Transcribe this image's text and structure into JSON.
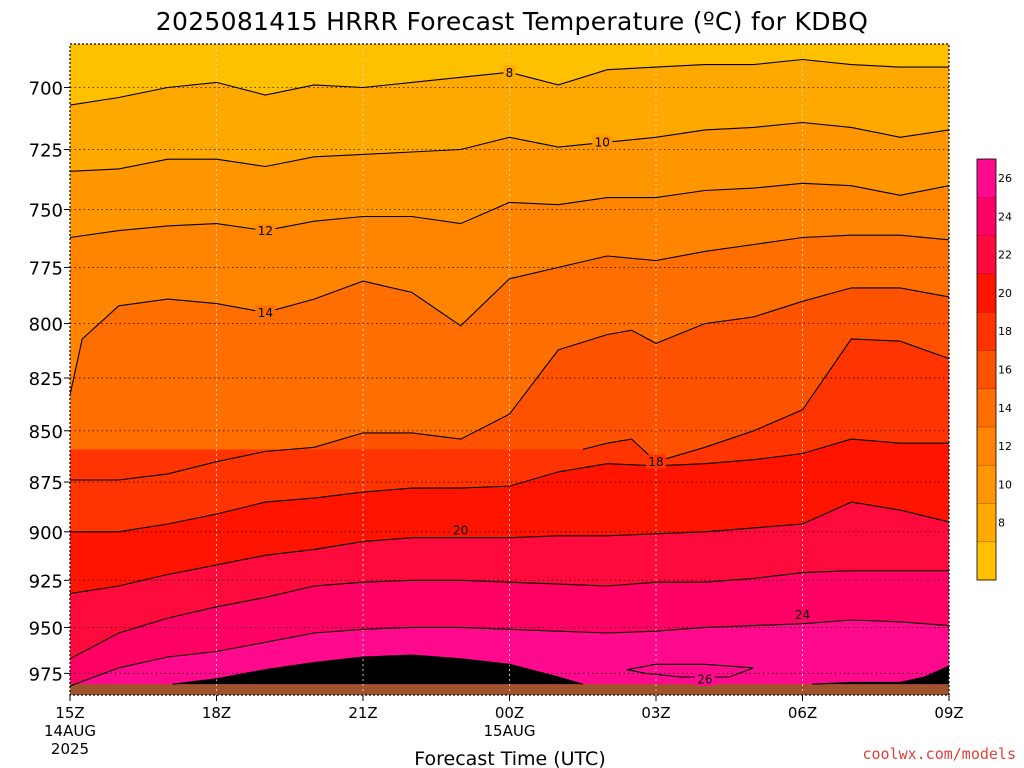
{
  "chart_data": {
    "type": "heatmap",
    "title": "2025081415 HRRR Forecast Temperature (ºC) for KDBQ",
    "xlabel": "Forecast Time (UTC)",
    "x_ticks": [
      {
        "hour": 0,
        "lines": [
          "15Z",
          "14AUG",
          "2025"
        ]
      },
      {
        "hour": 3,
        "lines": [
          "18Z"
        ]
      },
      {
        "hour": 6,
        "lines": [
          "21Z"
        ]
      },
      {
        "hour": 9,
        "lines": [
          "00Z",
          "15AUG"
        ]
      },
      {
        "hour": 12,
        "lines": [
          "03Z"
        ]
      },
      {
        "hour": 15,
        "lines": [
          "06Z"
        ]
      },
      {
        "hour": 18,
        "lines": [
          "09Z"
        ]
      }
    ],
    "x_range_hours": [
      0,
      18
    ],
    "y_range_hpa": [
      683,
      987
    ],
    "y_scale": "log",
    "y_ticks": [
      700,
      725,
      750,
      775,
      800,
      825,
      850,
      875,
      900,
      925,
      950,
      975
    ],
    "ground_pressure_hpa": 981,
    "grid": true,
    "colorbar": {
      "levels": [
        6,
        8,
        10,
        12,
        14,
        16,
        18,
        20,
        22,
        24,
        26,
        28
      ],
      "labels": [
        8,
        10,
        12,
        14,
        16,
        18,
        20,
        22,
        24,
        26
      ],
      "colors": [
        "#ffc000",
        "#ffa800",
        "#ff9600",
        "#ff8400",
        "#ff6e00",
        "#ff5200",
        "#ff3400",
        "#ff1400",
        "#ff0a3c",
        "#ff0064",
        "#ff0a8c"
      ]
    },
    "ground_color": "#a0522d",
    "contours": [
      {
        "value": 8,
        "label": "8",
        "points": [
          [
            0,
            707
          ],
          [
            1,
            704
          ],
          [
            2,
            700
          ],
          [
            3,
            698
          ],
          [
            4,
            703
          ],
          [
            5,
            699
          ],
          [
            6,
            700
          ],
          [
            7,
            698
          ],
          [
            8,
            696
          ],
          [
            9,
            694
          ],
          [
            10,
            699
          ],
          [
            11,
            693
          ],
          [
            12,
            692
          ],
          [
            13,
            691
          ],
          [
            14,
            691
          ],
          [
            15,
            689
          ],
          [
            16,
            691
          ],
          [
            17,
            692
          ],
          [
            18,
            692
          ]
        ]
      },
      {
        "value": 10,
        "label": "10",
        "points": [
          [
            0,
            734
          ],
          [
            1,
            733
          ],
          [
            2,
            729
          ],
          [
            3,
            729
          ],
          [
            4,
            732
          ],
          [
            5,
            728
          ],
          [
            6,
            727
          ],
          [
            7,
            726
          ],
          [
            8,
            725
          ],
          [
            9,
            720
          ],
          [
            10,
            724
          ],
          [
            11,
            722
          ],
          [
            12,
            720
          ],
          [
            13,
            717
          ],
          [
            14,
            716
          ],
          [
            15,
            714
          ],
          [
            16,
            716
          ],
          [
            17,
            720
          ],
          [
            18,
            717
          ]
        ]
      },
      {
        "value": 12,
        "label": "12",
        "points": [
          [
            0,
            762
          ],
          [
            1,
            759
          ],
          [
            2,
            757
          ],
          [
            3,
            756
          ],
          [
            4,
            759
          ],
          [
            5,
            755
          ],
          [
            6,
            753
          ],
          [
            7,
            753
          ],
          [
            8,
            756
          ],
          [
            9,
            747
          ],
          [
            10,
            748
          ],
          [
            11,
            745
          ],
          [
            12,
            745
          ],
          [
            13,
            742
          ],
          [
            14,
            741
          ],
          [
            15,
            739
          ],
          [
            16,
            740
          ],
          [
            17,
            744
          ],
          [
            18,
            740
          ]
        ]
      },
      {
        "value": 14,
        "label": "14",
        "points": [
          [
            0,
            833
          ],
          [
            0.25,
            807
          ],
          [
            1,
            792
          ],
          [
            2,
            789
          ],
          [
            3,
            791
          ],
          [
            4,
            795
          ],
          [
            5,
            789
          ],
          [
            6,
            781
          ],
          [
            7,
            786
          ],
          [
            8,
            801
          ],
          [
            9,
            780
          ],
          [
            10,
            775
          ],
          [
            11,
            770
          ],
          [
            12,
            772
          ],
          [
            13,
            768
          ],
          [
            14,
            765
          ],
          [
            15,
            762
          ],
          [
            16,
            761
          ],
          [
            17,
            761
          ],
          [
            18,
            763
          ]
        ]
      },
      {
        "value": 16,
        "label": "",
        "points": [
          [
            0,
            874
          ],
          [
            1,
            874
          ],
          [
            2,
            871
          ],
          [
            3,
            865
          ],
          [
            4,
            860
          ],
          [
            5,
            858
          ],
          [
            6,
            851
          ],
          [
            7,
            851
          ],
          [
            8,
            854
          ],
          [
            9,
            842
          ],
          [
            10,
            812
          ],
          [
            11,
            805
          ],
          [
            11.5,
            803
          ],
          [
            12,
            809
          ],
          [
            13,
            800
          ],
          [
            14,
            797
          ],
          [
            15,
            790
          ],
          [
            16,
            784
          ],
          [
            17,
            784
          ],
          [
            18,
            788
          ]
        ]
      },
      {
        "value": 18,
        "label": "18",
        "points": [
          [
            10.5,
            859
          ],
          [
            11,
            856
          ],
          [
            11.5,
            854
          ],
          [
            12,
            865
          ],
          [
            13,
            858
          ],
          [
            14,
            850
          ],
          [
            15,
            840
          ],
          [
            16,
            807
          ],
          [
            17,
            808
          ],
          [
            18,
            816
          ]
        ]
      },
      {
        "value": 20,
        "label": "20",
        "points": [
          [
            0,
            900
          ],
          [
            1,
            900
          ],
          [
            2,
            896
          ],
          [
            3,
            891
          ],
          [
            4,
            885
          ],
          [
            5,
            883
          ],
          [
            6,
            880
          ],
          [
            7,
            878
          ],
          [
            8,
            878
          ],
          [
            9,
            877
          ],
          [
            10,
            870
          ],
          [
            11,
            866
          ],
          [
            12,
            867
          ],
          [
            13,
            866
          ],
          [
            14,
            864
          ],
          [
            15,
            861
          ],
          [
            16,
            854
          ],
          [
            17,
            856
          ],
          [
            18,
            856
          ]
        ]
      },
      {
        "value": 22,
        "label": "",
        "points": [
          [
            0,
            932
          ],
          [
            1,
            928
          ],
          [
            2,
            922
          ],
          [
            3,
            917
          ],
          [
            4,
            912
          ],
          [
            5,
            909
          ],
          [
            6,
            905
          ],
          [
            7,
            903
          ],
          [
            8,
            903
          ],
          [
            9,
            903
          ],
          [
            10,
            902
          ],
          [
            11,
            902
          ],
          [
            12,
            901
          ],
          [
            13,
            900
          ],
          [
            14,
            898
          ],
          [
            15,
            896
          ],
          [
            16,
            885
          ],
          [
            17,
            889
          ],
          [
            18,
            895
          ]
        ]
      },
      {
        "value": 24,
        "label": "24",
        "points": [
          [
            0,
            967
          ],
          [
            1,
            953
          ],
          [
            2,
            945
          ],
          [
            3,
            939
          ],
          [
            4,
            934
          ],
          [
            5,
            928
          ],
          [
            6,
            926
          ],
          [
            7,
            925
          ],
          [
            8,
            925
          ],
          [
            9,
            926
          ],
          [
            10,
            927
          ],
          [
            11,
            928
          ],
          [
            12,
            926
          ],
          [
            13,
            926
          ],
          [
            14,
            924
          ],
          [
            15,
            921
          ],
          [
            16,
            920
          ],
          [
            17,
            920
          ],
          [
            18,
            920
          ]
        ]
      },
      {
        "value": 26,
        "label": "",
        "points": [
          [
            0,
            982
          ],
          [
            1,
            972
          ],
          [
            2,
            966
          ],
          [
            3,
            963
          ],
          [
            4,
            958
          ],
          [
            5,
            953
          ],
          [
            6,
            951
          ],
          [
            7,
            950
          ],
          [
            8,
            950
          ],
          [
            9,
            951
          ],
          [
            10,
            952
          ],
          [
            11,
            953
          ],
          [
            12,
            952
          ],
          [
            13,
            950
          ],
          [
            14,
            949
          ],
          [
            15,
            948
          ],
          [
            16,
            946
          ],
          [
            17,
            947
          ],
          [
            18,
            949
          ]
        ]
      },
      {
        "value": 28,
        "label": "",
        "points": [
          [
            2.1,
            981
          ],
          [
            3,
            978
          ],
          [
            4,
            973
          ],
          [
            5,
            969
          ],
          [
            6,
            966
          ],
          [
            7,
            965
          ],
          [
            8,
            967
          ],
          [
            9,
            970
          ],
          [
            10,
            977
          ],
          [
            10.5,
            981
          ]
        ]
      },
      {
        "value": 26,
        "label": "26",
        "closed": true,
        "points": [
          [
            11.4,
            973
          ],
          [
            12,
            970
          ],
          [
            13,
            970
          ],
          [
            14,
            972
          ],
          [
            13.5,
            977
          ],
          [
            12.5,
            977
          ],
          [
            11.8,
            975
          ]
        ]
      },
      {
        "value": 28,
        "label": "",
        "points": [
          [
            15.2,
            981
          ],
          [
            16,
            980
          ],
          [
            17,
            980
          ],
          [
            17.5,
            977
          ],
          [
            18,
            971
          ]
        ]
      }
    ],
    "label_positions": [
      {
        "label": "8",
        "hour": 9.0,
        "hpa": 694
      },
      {
        "label": "10",
        "hour": 10.9,
        "hpa": 722
      },
      {
        "label": "12",
        "hour": 4.0,
        "hpa": 759
      },
      {
        "label": "14",
        "hour": 4.0,
        "hpa": 795
      },
      {
        "label": "18",
        "hour": 12.0,
        "hpa": 865
      },
      {
        "label": "20",
        "hour": 8.0,
        "hpa": 899
      },
      {
        "label": "24",
        "hour": 15.0,
        "hpa": 943
      },
      {
        "label": "26",
        "hour": 13.0,
        "hpa": 978
      }
    ]
  },
  "credit": "coolwx.com/models"
}
